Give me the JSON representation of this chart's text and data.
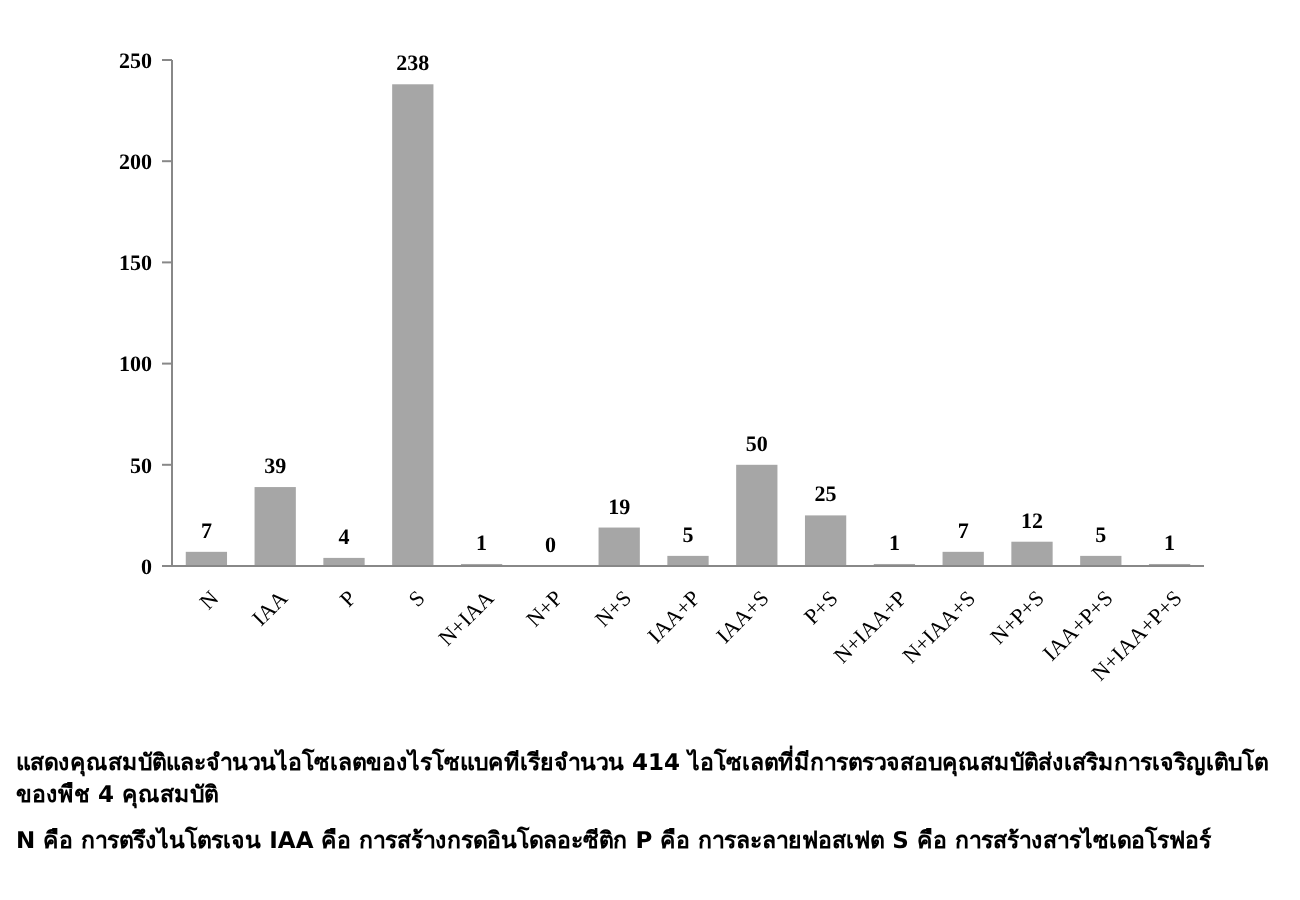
{
  "chart_data": {
    "type": "bar",
    "categories": [
      "N",
      "IAA",
      "P",
      "S",
      "N+IAA",
      "N+P",
      "N+S",
      "IAA+P",
      "IAA+S",
      "P+S",
      "N+IAA+P",
      "N+IAA+S",
      "N+P+S",
      "IAA+P+S",
      "N+IAA+P+S"
    ],
    "values": [
      7,
      39,
      4,
      238,
      1,
      0,
      19,
      5,
      50,
      25,
      1,
      7,
      12,
      5,
      1
    ],
    "color": "#a6a6a6",
    "ylim": [
      0,
      250
    ],
    "yticks": [
      0,
      50,
      100,
      150,
      200,
      250
    ],
    "data_labels": true,
    "grid": false,
    "annotations": [
      "แสดงคุณสมบัติและจำนวนไอโซเลตของไรโซแบคทีเรียจำนวน 414 ไอโซเลตที่มีการตรวจสอบคุณสมบัติส่งเสริมการเจริญเติบโตของพืช 4 คุณสมบัติ",
      "N คือ การตรึงไนโตรเจน IAA คือ การสร้างกรดอินโดลอะซีติก P คือ การละลายฟอสเฟต S คือ การสร้างสารไซเดอโรฟอร์"
    ]
  }
}
